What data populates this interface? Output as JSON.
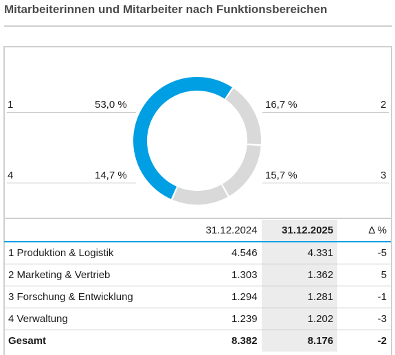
{
  "title": "Mitarbeiterinnen und Mitarbeiter nach Funktionsbereichen",
  "colors": {
    "accent": "#009fe3",
    "grey_segment": "#d9d9d9",
    "highlight_column": "#ececec"
  },
  "chart_data": {
    "type": "pie",
    "variant": "donut",
    "categories": [
      "1",
      "2",
      "3",
      "4"
    ],
    "values": [
      53.0,
      16.7,
      15.7,
      14.7
    ],
    "value_labels": [
      "53,0 %",
      "16,7 %",
      "15,7 %",
      "14,7 %"
    ],
    "colors": [
      "#009fe3",
      "#d9d9d9",
      "#d9d9d9",
      "#d9d9d9"
    ]
  },
  "segment_labels": [
    {
      "number": "1",
      "percent": "53,0 %"
    },
    {
      "number": "2",
      "percent": "16,7 %"
    },
    {
      "number": "3",
      "percent": "15,7 %"
    },
    {
      "number": "4",
      "percent": "14,7 %"
    }
  ],
  "table": {
    "headers": {
      "name": "",
      "prev": "31.12.2024",
      "cur": "31.12.2025",
      "delta": "Δ %"
    },
    "rows": [
      {
        "name": "1 Produktion & Logistik",
        "prev": "4.546",
        "cur": "4.331",
        "delta": "-5"
      },
      {
        "name": "2 Marketing & Vertrieb",
        "prev": "1.303",
        "cur": "1.362",
        "delta": "5"
      },
      {
        "name": "3 Forschung & Entwicklung",
        "prev": "1.294",
        "cur": "1.281",
        "delta": "-1"
      },
      {
        "name": "4 Verwaltung",
        "prev": "1.239",
        "cur": "1.202",
        "delta": "-3"
      }
    ],
    "total": {
      "name": "Gesamt",
      "prev": "8.382",
      "cur": "8.176",
      "delta": "-2"
    }
  }
}
